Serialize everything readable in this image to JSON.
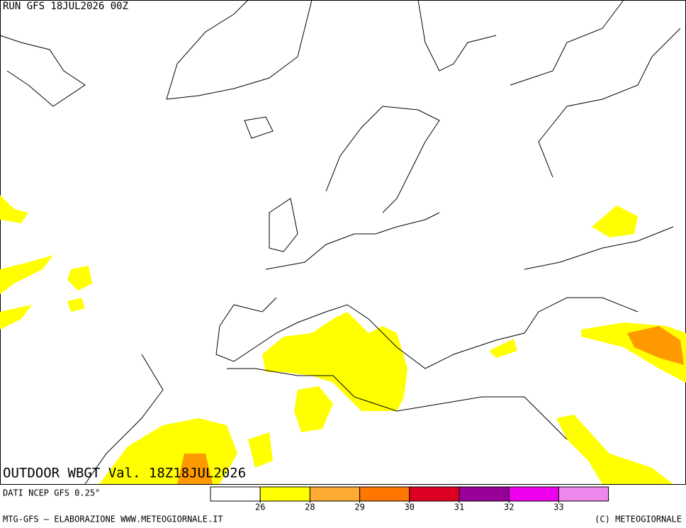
{
  "header": {
    "run": "RUN GFS 18JUL2026 00Z"
  },
  "map": {
    "title": "OUTDOOR WBGT Val. 18Z18JUL2026"
  },
  "legend": {
    "source": "DATI NCEP GFS 0.25°",
    "thresholds": [
      26,
      28,
      29,
      30,
      31,
      32,
      33
    ],
    "colors": [
      "#ffffff",
      "#ffff00",
      "#ffaa33",
      "#ff7700",
      "#dd0022",
      "#990099",
      "#ee00ee",
      "#ee88ee"
    ]
  },
  "footer": {
    "left": "MTG-GFS — ELABORAZIONE WWW.METEOGIORNALE.IT",
    "right": "(C) METEOGIORNALE"
  }
}
